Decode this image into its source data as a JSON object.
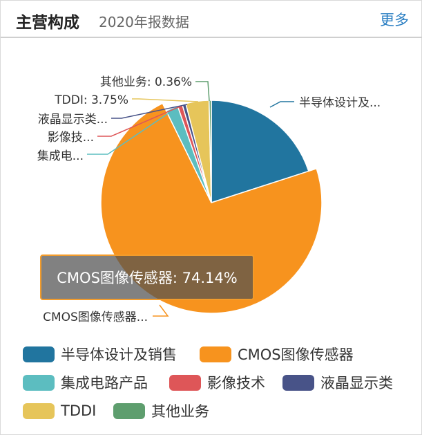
{
  "header": {
    "title": "主营构成",
    "subtitle": "2020年报数据",
    "more_label": "更多"
  },
  "tooltip": {
    "text": "CMOS图像传感器: 74.14%"
  },
  "chart_data": {
    "type": "pie",
    "unit": "%",
    "slices": [
      {
        "name": "半导体设计及销售",
        "label": "半导体设计及...",
        "value": 20.43,
        "color": "#21759f"
      },
      {
        "name": "CMOS图像传感器",
        "label": "CMOS图像传感器...",
        "value": 74.14,
        "color": "#f7931e"
      },
      {
        "name": "集成电路产品",
        "label": "集成电...",
        "value": 1.97,
        "color": "#5cbdc0"
      },
      {
        "name": "影像技术",
        "label": "影像技...",
        "value": 0.77,
        "color": "#de5658"
      },
      {
        "name": "液晶显示类",
        "label": "液晶显示类...",
        "value": 0.58,
        "color": "#485388"
      },
      {
        "name": "TDDI",
        "label": "TDDI: 3.75%",
        "value": 3.75,
        "color": "#e6c55a"
      },
      {
        "name": "其他业务",
        "label": "其他业务: 0.36%",
        "value": 0.36,
        "color": "#5e9e6e"
      }
    ],
    "legend_placement": "bottom"
  }
}
